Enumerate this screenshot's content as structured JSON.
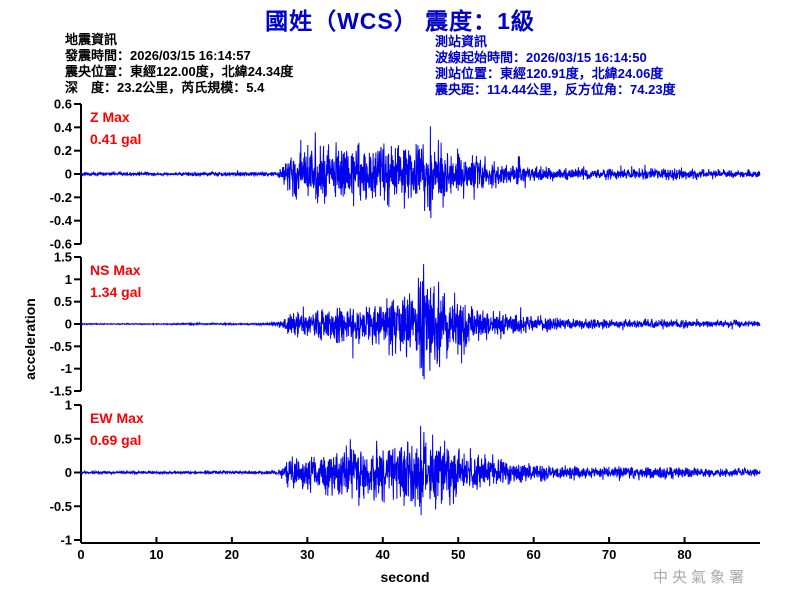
{
  "title": "國姓（WCS） 震度：1級",
  "colors": {
    "blue": "#0000CC",
    "wave": "#0000EE",
    "red": "#FF0000",
    "black": "#000000",
    "gray": "#A9A9A9"
  },
  "event_info": {
    "heading": "地震資訊",
    "lines": [
      "發震時間：2026/03/15 16:14:57",
      "震央位置：東經122.00度，北緯24.34度",
      "深　度：23.2公里，芮氏規模：5.4"
    ]
  },
  "station_info": {
    "heading": "測站資訊",
    "lines": [
      "波線起始時間：2026/03/15 16:14:50",
      "測站位置：東經120.91度，北緯24.06度",
      "震央距：114.44公里，反方位角：74.23度"
    ]
  },
  "xlabel": "second",
  "ylabel": "acceleration",
  "watermark": "中央氣象署",
  "chart_data": {
    "type": "line",
    "description": "Three-component strong-motion seismogram (acceleration in gal vs time in seconds)",
    "xlim": [
      0,
      90
    ],
    "x_ticks": [
      0,
      10,
      20,
      30,
      40,
      50,
      60,
      70,
      80
    ],
    "x_unit": "second",
    "grid": false,
    "channels": [
      {
        "name": "Z",
        "max_label": "Z Max",
        "value_label": "0.41 gal",
        "max_gal": 0.41,
        "peak_time": 46.3,
        "onset_time": 27,
        "ylim": [
          -0.6,
          0.6
        ],
        "y_ticks": [
          "0.6",
          "0.4",
          "0.2",
          "0",
          "-0.2",
          "-0.4",
          "-0.6"
        ],
        "seed": 42,
        "envelope": [
          [
            0,
            0.025
          ],
          [
            10,
            0.025
          ],
          [
            20,
            0.03
          ],
          [
            26,
            0.035
          ],
          [
            27,
            0.18
          ],
          [
            28,
            0.38
          ],
          [
            30,
            0.45
          ],
          [
            33,
            0.42
          ],
          [
            36,
            0.38
          ],
          [
            39,
            0.43
          ],
          [
            42,
            0.46
          ],
          [
            44,
            0.44
          ],
          [
            45.5,
            0.52
          ],
          [
            47,
            0.48
          ],
          [
            48.5,
            0.4
          ],
          [
            50,
            0.32
          ],
          [
            52,
            0.24
          ],
          [
            54,
            0.2
          ],
          [
            56,
            0.16
          ],
          [
            58,
            0.13
          ],
          [
            60,
            0.11
          ],
          [
            64,
            0.09
          ],
          [
            68,
            0.08
          ],
          [
            72,
            0.075
          ],
          [
            76,
            0.09
          ],
          [
            79,
            0.1
          ],
          [
            82,
            0.07
          ],
          [
            86,
            0.06
          ],
          [
            90,
            0.05
          ]
        ]
      },
      {
        "name": "NS",
        "max_label": "NS Max",
        "value_label": "1.34 gal",
        "max_gal": 1.34,
        "peak_time": 45.4,
        "onset_time": 27,
        "ylim": [
          -1.5,
          1.5
        ],
        "y_ticks": [
          "1.5",
          "1",
          "0.5",
          "0",
          "-0.5",
          "-1",
          "-1.5"
        ],
        "seed": 1337,
        "envelope": [
          [
            0,
            0.006
          ],
          [
            12,
            0.006
          ],
          [
            14,
            0.012
          ],
          [
            16,
            0.008
          ],
          [
            22,
            0.008
          ],
          [
            25,
            0.015
          ],
          [
            26.5,
            0.05
          ],
          [
            28,
            0.16
          ],
          [
            30,
            0.19
          ],
          [
            33,
            0.2
          ],
          [
            36,
            0.24
          ],
          [
            39,
            0.28
          ],
          [
            41,
            0.32
          ],
          [
            43,
            0.42
          ],
          [
            44.5,
            0.55
          ],
          [
            46,
            0.58
          ],
          [
            47.5,
            0.48
          ],
          [
            49,
            0.4
          ],
          [
            51,
            0.3
          ],
          [
            53,
            0.22
          ],
          [
            55,
            0.17
          ],
          [
            57,
            0.13
          ],
          [
            59,
            0.11
          ],
          [
            62,
            0.09
          ],
          [
            65,
            0.075
          ],
          [
            68,
            0.065
          ],
          [
            72,
            0.06
          ],
          [
            76,
            0.055
          ],
          [
            80,
            0.05
          ],
          [
            85,
            0.045
          ],
          [
            90,
            0.04
          ]
        ]
      },
      {
        "name": "EW",
        "max_label": "EW Max",
        "value_label": "0.69 gal",
        "max_gal": 0.69,
        "peak_time": 45.0,
        "onset_time": 27,
        "ylim": [
          -1,
          1
        ],
        "y_ticks": [
          "1",
          "0.5",
          "0",
          "-0.5",
          "-1"
        ],
        "seed": 2024,
        "envelope": [
          [
            0,
            0.02
          ],
          [
            8,
            0.022
          ],
          [
            16,
            0.025
          ],
          [
            24,
            0.028
          ],
          [
            26,
            0.035
          ],
          [
            27,
            0.14
          ],
          [
            28,
            0.28
          ],
          [
            30,
            0.32
          ],
          [
            33,
            0.36
          ],
          [
            36,
            0.42
          ],
          [
            39,
            0.48
          ],
          [
            41,
            0.52
          ],
          [
            43,
            0.58
          ],
          [
            45,
            0.62
          ],
          [
            46.5,
            0.58
          ],
          [
            48,
            0.52
          ],
          [
            50,
            0.44
          ],
          [
            52,
            0.34
          ],
          [
            54,
            0.28
          ],
          [
            56,
            0.22
          ],
          [
            58,
            0.18
          ],
          [
            60,
            0.15
          ],
          [
            63,
            0.12
          ],
          [
            66,
            0.1
          ],
          [
            70,
            0.1
          ],
          [
            74,
            0.11
          ],
          [
            78,
            0.11
          ],
          [
            81,
            0.09
          ],
          [
            84,
            0.08
          ],
          [
            87,
            0.07
          ],
          [
            90,
            0.06
          ]
        ]
      }
    ]
  }
}
